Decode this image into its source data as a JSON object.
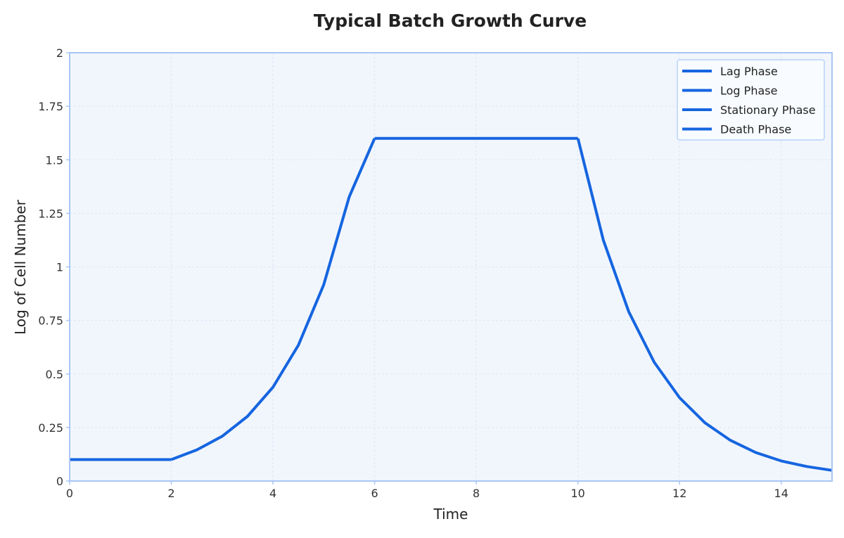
{
  "chart_data": {
    "type": "line",
    "title": "Typical Batch Growth Curve",
    "xlabel": "Time",
    "ylabel": "Log of Cell Number",
    "xlim": [
      0,
      15
    ],
    "ylim": [
      0,
      2
    ],
    "xticks": [
      0,
      2,
      4,
      6,
      8,
      10,
      12,
      14
    ],
    "yticks": [
      0,
      0.25,
      0.5,
      0.75,
      1,
      1.25,
      1.5,
      1.75,
      2
    ],
    "xtick_labels": [
      "0",
      "2",
      "4",
      "6",
      "8",
      "10",
      "12",
      "14"
    ],
    "ytick_labels": [
      "0",
      "0.25",
      "0.5",
      "0.75",
      "1",
      "1.25",
      "1.5",
      "1.75",
      "2"
    ],
    "grid": true,
    "legend_position": "top-right",
    "series": [
      {
        "name": "Lag Phase",
        "color": "#1565e0",
        "x": [
          0,
          2
        ],
        "y": [
          0.1,
          0.1
        ]
      },
      {
        "name": "Log Phase",
        "color": "#1565e0",
        "x": [
          2,
          2.5,
          3,
          3.5,
          4,
          4.5,
          5,
          5.5,
          6
        ],
        "y": [
          0.1,
          0.145,
          0.209,
          0.302,
          0.438,
          0.634,
          0.917,
          1.327,
          1.6
        ]
      },
      {
        "name": "Stationary Phase",
        "color": "#1565e0",
        "x": [
          6,
          10
        ],
        "y": [
          1.6,
          1.6
        ]
      },
      {
        "name": "Death Phase",
        "color": "#1565e0",
        "x": [
          10,
          10.5,
          11,
          11.5,
          12,
          12.5,
          13,
          13.5,
          14,
          14.5,
          15
        ],
        "y": [
          1.6,
          1.125,
          0.791,
          0.555,
          0.389,
          0.272,
          0.19,
          0.133,
          0.094,
          0.068,
          0.05
        ]
      }
    ]
  }
}
